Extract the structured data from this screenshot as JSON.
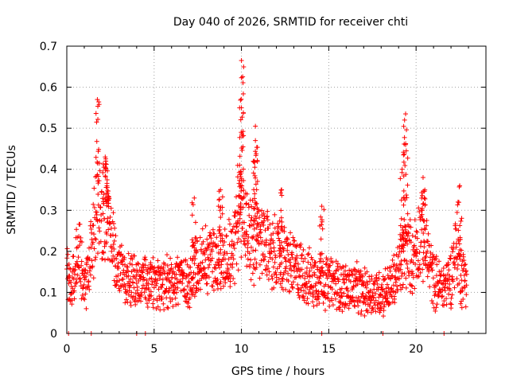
{
  "chart_data": {
    "type": "scatter",
    "title": "Day 040 of 2026, SRMTID for receiver chti",
    "xlabel": "GPS time / hours",
    "ylabel": "SRMTID / TECUs",
    "xlim": [
      0,
      24
    ],
    "ylim": [
      0,
      0.7
    ],
    "xticks": [
      0,
      5,
      10,
      15,
      20
    ],
    "xtick_labels": [
      "0",
      "5",
      "10",
      "15",
      "20"
    ],
    "yticks": [
      0,
      0.1,
      0.2,
      0.3,
      0.4,
      0.5,
      0.6,
      0.7
    ],
    "ytick_labels": [
      "0",
      "0.1",
      "0.2",
      "0.3",
      "0.4",
      "0.5",
      "0.6",
      "0.7"
    ],
    "grid": true,
    "marker": "plus",
    "color": "#ff0000",
    "series": [
      {
        "name": "SRMTID",
        "baseline": [
          [
            0.0,
            0.15
          ],
          [
            0.3,
            0.1
          ],
          [
            0.5,
            0.18
          ],
          [
            0.7,
            0.2
          ],
          [
            1.0,
            0.12
          ],
          [
            1.3,
            0.18
          ],
          [
            1.6,
            0.25
          ],
          [
            1.8,
            0.35
          ],
          [
            2.0,
            0.28
          ],
          [
            2.3,
            0.3
          ],
          [
            2.6,
            0.22
          ],
          [
            3.0,
            0.15
          ],
          [
            3.5,
            0.13
          ],
          [
            4.0,
            0.12
          ],
          [
            4.5,
            0.13
          ],
          [
            5.0,
            0.12
          ],
          [
            5.5,
            0.11
          ],
          [
            6.0,
            0.13
          ],
          [
            6.5,
            0.14
          ],
          [
            7.0,
            0.12
          ],
          [
            7.5,
            0.17
          ],
          [
            8.0,
            0.19
          ],
          [
            8.5,
            0.18
          ],
          [
            9.0,
            0.19
          ],
          [
            9.5,
            0.2
          ],
          [
            10.0,
            0.3
          ],
          [
            10.5,
            0.24
          ],
          [
            11.0,
            0.22
          ],
          [
            11.5,
            0.21
          ],
          [
            12.0,
            0.19
          ],
          [
            12.5,
            0.18
          ],
          [
            13.0,
            0.16
          ],
          [
            13.5,
            0.15
          ],
          [
            14.0,
            0.13
          ],
          [
            14.5,
            0.14
          ],
          [
            15.0,
            0.12
          ],
          [
            15.5,
            0.12
          ],
          [
            16.0,
            0.11
          ],
          [
            16.5,
            0.11
          ],
          [
            17.0,
            0.1
          ],
          [
            17.5,
            0.1
          ],
          [
            18.0,
            0.1
          ],
          [
            18.5,
            0.11
          ],
          [
            19.0,
            0.15
          ],
          [
            19.4,
            0.2
          ],
          [
            19.8,
            0.18
          ],
          [
            20.2,
            0.24
          ],
          [
            20.5,
            0.22
          ],
          [
            21.0,
            0.13
          ],
          [
            21.5,
            0.11
          ],
          [
            22.0,
            0.14
          ],
          [
            22.3,
            0.22
          ],
          [
            22.6,
            0.13
          ],
          [
            22.9,
            0.15
          ]
        ],
        "peaks": [
          {
            "x": 1.75,
            "y": 0.57
          },
          {
            "x": 2.2,
            "y": 0.43
          },
          {
            "x": 2.3,
            "y": 0.36
          },
          {
            "x": 7.3,
            "y": 0.33
          },
          {
            "x": 8.8,
            "y": 0.35
          },
          {
            "x": 9.9,
            "y": 0.41
          },
          {
            "x": 10.0,
            "y": 0.665
          },
          {
            "x": 10.0,
            "y": 0.55
          },
          {
            "x": 10.8,
            "y": 0.505
          },
          {
            "x": 10.8,
            "y": 0.47
          },
          {
            "x": 12.3,
            "y": 0.35
          },
          {
            "x": 14.6,
            "y": 0.31
          },
          {
            "x": 19.4,
            "y": 0.535
          },
          {
            "x": 19.4,
            "y": 0.46
          },
          {
            "x": 19.2,
            "y": 0.4
          },
          {
            "x": 20.4,
            "y": 0.38
          },
          {
            "x": 22.5,
            "y": 0.36
          }
        ],
        "zero_markers": [
          0.1,
          1.4,
          4.0,
          4.5,
          14.6,
          18.1,
          21.6
        ]
      }
    ]
  }
}
